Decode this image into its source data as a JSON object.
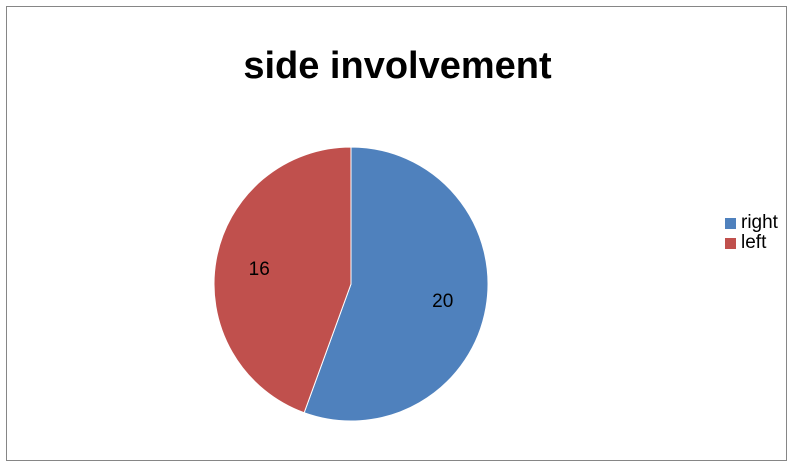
{
  "chart_data": {
    "type": "pie",
    "title": "side involvement",
    "categories": [
      "right",
      "left"
    ],
    "values": [
      20,
      16
    ],
    "colors": [
      "#4F81BD",
      "#C0504D"
    ],
    "data_labels": [
      "20",
      "16"
    ],
    "legend_position": "right"
  }
}
